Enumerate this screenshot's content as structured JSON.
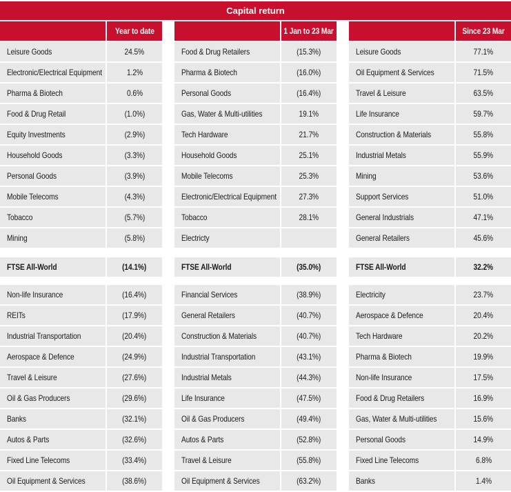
{
  "title": "Capital return",
  "colors": {
    "accent_red": "#c8102e",
    "row_background": "#e8e8e8",
    "header_text": "#ffffff",
    "body_text": "#1a1a1a"
  },
  "chart_data": [
    {
      "type": "table",
      "title": "Capital return",
      "column_header": "Year to date",
      "rows_top": [
        {
          "label": "Leisure Goods",
          "value": "24.5%"
        },
        {
          "label": "Electronic/Electrical Equipment",
          "value": "1.2%"
        },
        {
          "label": "Pharma & Biotech",
          "value": "0.6%"
        },
        {
          "label": "Food & Drug Retail",
          "value": "(1.0%)"
        },
        {
          "label": "Equity Investments",
          "value": "(2.9%)"
        },
        {
          "label": "Household Goods",
          "value": "(3.3%)"
        },
        {
          "label": "Personal Goods",
          "value": "(3.9%)"
        },
        {
          "label": "Mobile Telecoms",
          "value": "(4.3%)"
        },
        {
          "label": "Tobacco",
          "value": "(5.7%)"
        },
        {
          "label": "Mining",
          "value": "(5.8%)"
        }
      ],
      "benchmark": {
        "label": "FTSE All-World",
        "value": "(14.1%)"
      },
      "rows_bottom": [
        {
          "label": "Non-life Insurance",
          "value": "(16.4%)"
        },
        {
          "label": "REITs",
          "value": "(17.9%)"
        },
        {
          "label": "Industrial Transportation",
          "value": "(20.4%)"
        },
        {
          "label": "Aerospace & Defence",
          "value": "(24.9%)"
        },
        {
          "label": "Travel & Leisure",
          "value": "(27.6%)"
        },
        {
          "label": "Oil & Gas Producers",
          "value": "(29.6%)"
        },
        {
          "label": "Banks",
          "value": "(32.1%)"
        },
        {
          "label": "Autos & Parts",
          "value": "(32.6%)"
        },
        {
          "label": "Fixed Line Telecoms",
          "value": "(33.4%)"
        },
        {
          "label": "Oil Equipment & Services",
          "value": "(38.6%)"
        }
      ]
    },
    {
      "type": "table",
      "title": "Capital return",
      "column_header": "1 Jan to 23 Mar",
      "rows_top": [
        {
          "label": "Food & Drug Retailers",
          "value": "(15.3%)"
        },
        {
          "label": "Pharma & Biotech",
          "value": "(16.0%)"
        },
        {
          "label": "Personal Goods",
          "value": "(16.4%)"
        },
        {
          "label": "Gas, Water & Multi-utilities",
          "value": "19.1%"
        },
        {
          "label": "Tech Hardware",
          "value": "21.7%"
        },
        {
          "label": "Household Goods",
          "value": "25.1%"
        },
        {
          "label": "Mobile Telecoms",
          "value": "25.3%"
        },
        {
          "label": "Electronic/Electrical Equipment",
          "value": "27.3%"
        },
        {
          "label": "Tobacco",
          "value": "28.1%"
        },
        {
          "label": "Electricty",
          "value": ""
        }
      ],
      "benchmark": {
        "label": "FTSE All-World",
        "value": "(35.0%)"
      },
      "rows_bottom": [
        {
          "label": "Financial Services",
          "value": "(38.9%)"
        },
        {
          "label": "General Retailers",
          "value": "(40.7%)"
        },
        {
          "label": "Construction & Materials",
          "value": "(40.7%)"
        },
        {
          "label": "Industrial Transportation",
          "value": "(43.1%)"
        },
        {
          "label": "Industrial Metals",
          "value": "(44.3%)"
        },
        {
          "label": "Life Insurance",
          "value": "(47.5%)"
        },
        {
          "label": "Oil & Gas Producers",
          "value": "(49.4%)"
        },
        {
          "label": "Autos & Parts",
          "value": "(52.8%)"
        },
        {
          "label": "Travel & Leisure",
          "value": "(55.8%)"
        },
        {
          "label": "Oil Equipment & Services",
          "value": "(63.2%)"
        }
      ]
    },
    {
      "type": "table",
      "title": "Capital return",
      "column_header": "Since 23 Mar",
      "rows_top": [
        {
          "label": "Leisure Goods",
          "value": "77.1%"
        },
        {
          "label": "Oil Equipment & Services",
          "value": "71.5%"
        },
        {
          "label": "Travel & Leisure",
          "value": "63.5%"
        },
        {
          "label": "Life Insurance",
          "value": "59.7%"
        },
        {
          "label": "Construction & Materials",
          "value": "55.8%"
        },
        {
          "label": "Industrial Metals",
          "value": "55.9%"
        },
        {
          "label": "Mining",
          "value": "53.6%"
        },
        {
          "label": "Support Services",
          "value": "51.0%"
        },
        {
          "label": "General Industrials",
          "value": "47.1%"
        },
        {
          "label": "General Retailers",
          "value": "45.6%"
        }
      ],
      "benchmark": {
        "label": "FTSE All-World",
        "value": "32.2%"
      },
      "rows_bottom": [
        {
          "label": "Electricity",
          "value": "23.7%"
        },
        {
          "label": "Aerospace & Defence",
          "value": "20.4%"
        },
        {
          "label": "Tech Hardware",
          "value": "20.2%"
        },
        {
          "label": "Pharma & Biotech",
          "value": "19.9%"
        },
        {
          "label": "Non-life Insurance",
          "value": "17.5%"
        },
        {
          "label": "Food & Drug Retailers",
          "value": "16.9%"
        },
        {
          "label": "Gas, Water & Multi-utilities",
          "value": "15.6%"
        },
        {
          "label": "Personal Goods",
          "value": "14.9%"
        },
        {
          "label": "Fixed Line Telecoms",
          "value": "6.8%"
        },
        {
          "label": "Banks",
          "value": "1.4%"
        }
      ]
    }
  ]
}
